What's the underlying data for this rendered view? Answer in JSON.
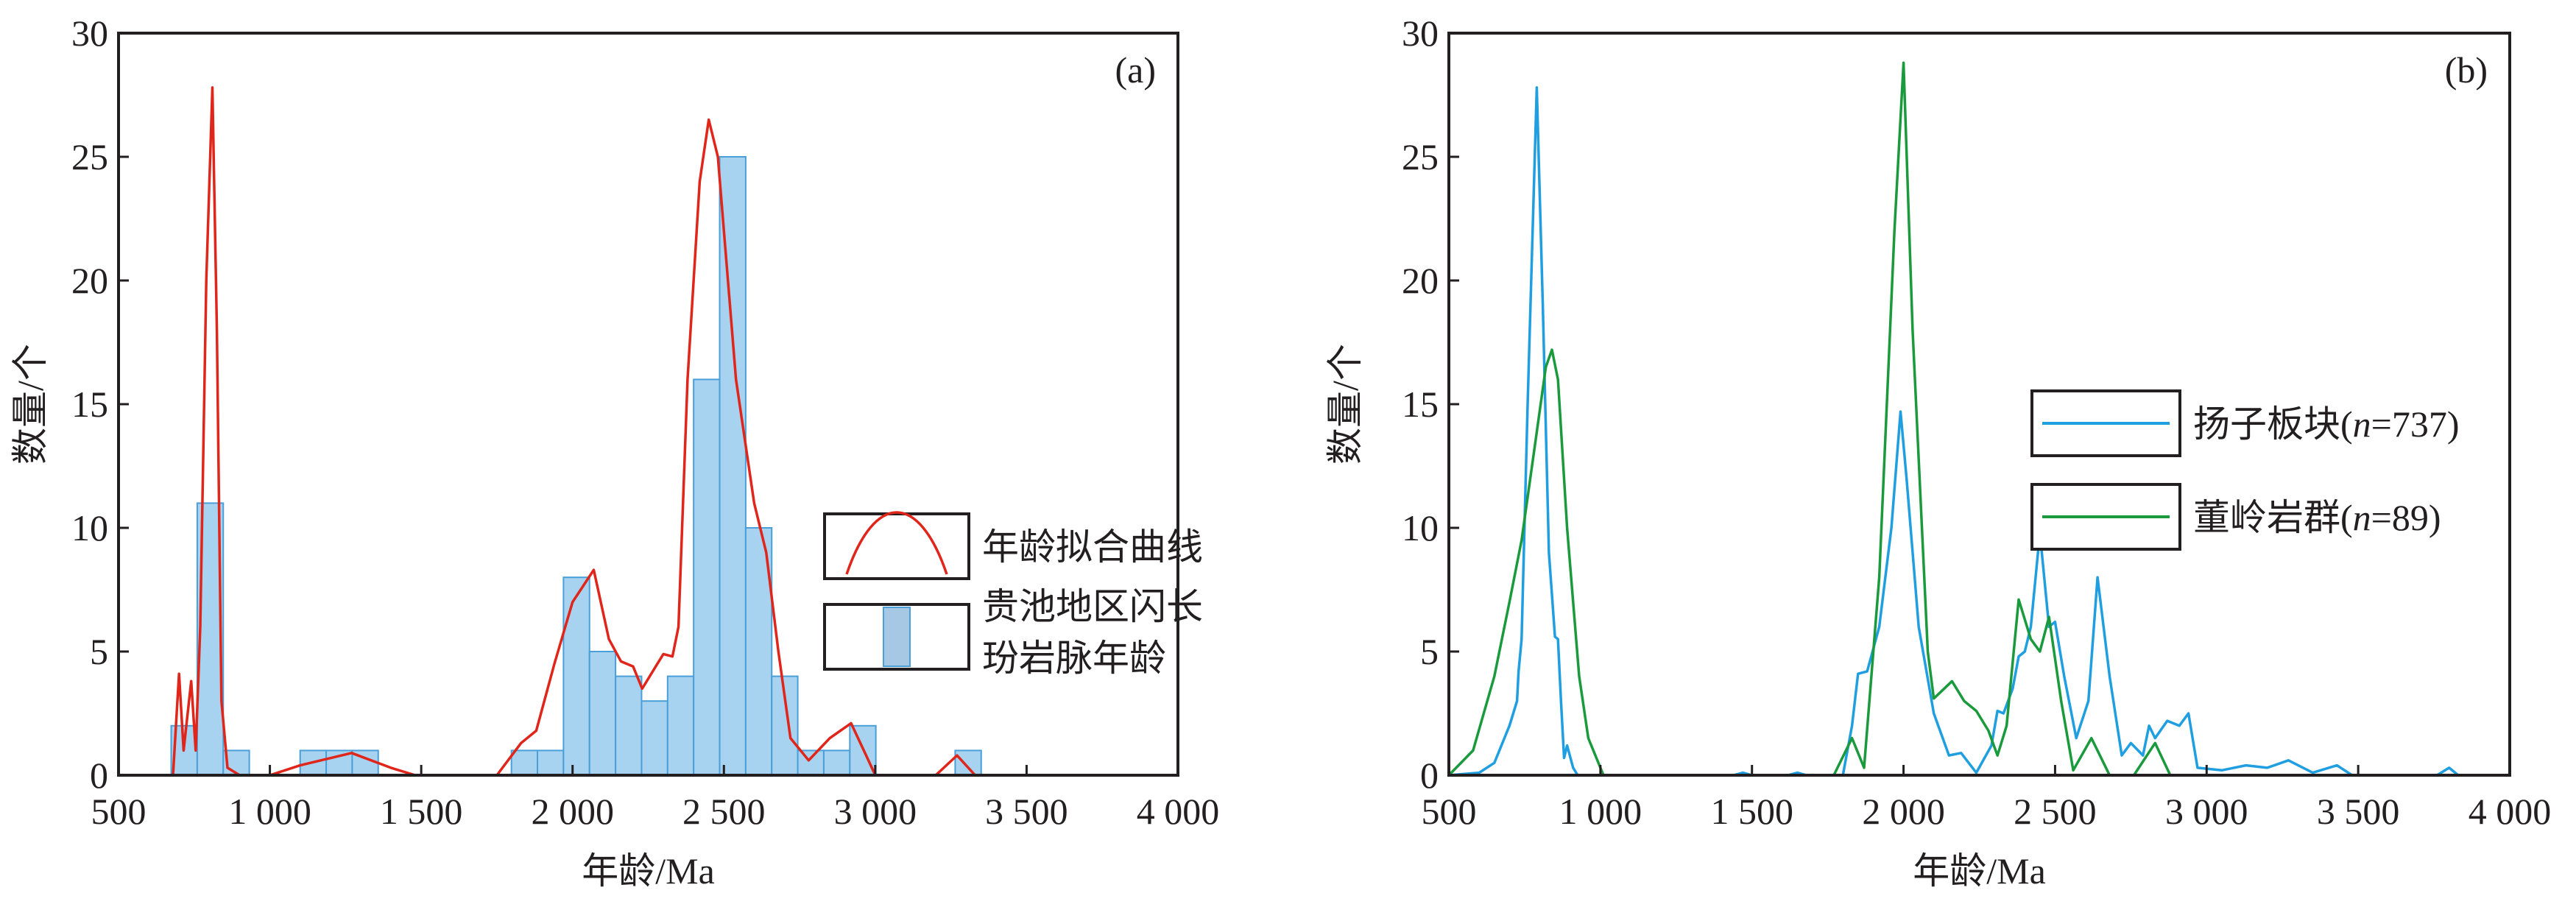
{
  "colors": {
    "axis": "#231f20",
    "bar_fill": "#a7d3f0",
    "bar_stroke": "#4a9fd8",
    "red": "#e0251b",
    "blue": "#1f9ee0",
    "green": "#1a9a3c"
  },
  "chart_data": [
    {
      "type": "bar",
      "panel_label": "(a)",
      "xlabel": "年龄/Ma",
      "ylabel": "数量/个",
      "xlim": [
        500,
        4000
      ],
      "ylim": [
        0,
        30
      ],
      "xticks": [
        500,
        1000,
        1500,
        2000,
        2500,
        3000,
        3500,
        4000
      ],
      "xtick_labels": [
        "500",
        "1 000",
        "1 500",
        "2 000",
        "2 500",
        "3 000",
        "3 500",
        "4 000"
      ],
      "yticks": [
        0,
        5,
        10,
        15,
        20,
        25,
        30
      ],
      "ytick_labels": [
        "0",
        "5",
        "10",
        "15",
        "20",
        "25",
        "30"
      ],
      "histogram": {
        "name": "贵池地区闪长玢岩脉年龄",
        "bin_width": 86,
        "bins": [
          [
            674,
            2
          ],
          [
            760,
            11
          ],
          [
            846,
            1
          ],
          [
            1100,
            1
          ],
          [
            1186,
            1
          ],
          [
            1272,
            1
          ],
          [
            1798,
            1
          ],
          [
            1884,
            1
          ],
          [
            1970,
            8
          ],
          [
            2056,
            5
          ],
          [
            2142,
            4
          ],
          [
            2228,
            3
          ],
          [
            2314,
            4
          ],
          [
            2400,
            16
          ],
          [
            2486,
            25
          ],
          [
            2572,
            10
          ],
          [
            2658,
            4
          ],
          [
            2744,
            1
          ],
          [
            2830,
            1
          ],
          [
            2916,
            2
          ],
          [
            3264,
            1
          ]
        ]
      },
      "series": [
        {
          "name": "年龄拟合曲线",
          "color": "#e0251b",
          "points": [
            [
              680,
              0
            ],
            [
              700,
              4.1
            ],
            [
              715,
              1
            ],
            [
              740,
              3.8
            ],
            [
              755,
              1
            ],
            [
              770,
              6
            ],
            [
              790,
              20
            ],
            [
              810,
              27.8
            ],
            [
              825,
              18
            ],
            [
              840,
              3
            ],
            [
              860,
              0.3
            ],
            [
              900,
              0
            ],
            [
              1000,
              0
            ],
            [
              1100,
              0.4
            ],
            [
              1270,
              0.9
            ],
            [
              1400,
              0.3
            ],
            [
              1480,
              0
            ],
            [
              1750,
              0
            ],
            [
              1830,
              1.3
            ],
            [
              1880,
              1.8
            ],
            [
              1940,
              4.5
            ],
            [
              2000,
              7
            ],
            [
              2070,
              8.3
            ],
            [
              2120,
              5.5
            ],
            [
              2160,
              4.6
            ],
            [
              2200,
              4.4
            ],
            [
              2230,
              3.5
            ],
            [
              2280,
              4.5
            ],
            [
              2300,
              4.9
            ],
            [
              2330,
              4.8
            ],
            [
              2350,
              6
            ],
            [
              2380,
              16
            ],
            [
              2420,
              24
            ],
            [
              2450,
              26.5
            ],
            [
              2480,
              25
            ],
            [
              2540,
              16
            ],
            [
              2600,
              11
            ],
            [
              2640,
              9
            ],
            [
              2680,
              5
            ],
            [
              2720,
              1.5
            ],
            [
              2780,
              0.6
            ],
            [
              2850,
              1.5
            ],
            [
              2920,
              2.1
            ],
            [
              2970,
              0.8
            ],
            [
              3000,
              0
            ],
            [
              3200,
              0
            ],
            [
              3270,
              0.8
            ],
            [
              3330,
              0
            ]
          ]
        }
      ],
      "legend": {
        "placement": "center-right",
        "entries": [
          "年龄拟合曲线",
          "贵池地区闪长",
          "玢岩脉年龄"
        ]
      }
    },
    {
      "type": "line",
      "panel_label": "(b)",
      "xlabel": "年龄/Ma",
      "ylabel": "数量/个",
      "xlim": [
        500,
        4000
      ],
      "ylim": [
        0,
        30
      ],
      "xticks": [
        500,
        1000,
        1500,
        2000,
        2500,
        3000,
        3500,
        4000
      ],
      "xtick_labels": [
        "500",
        "1 000",
        "1 500",
        "2 000",
        "2 500",
        "3 000",
        "3 500",
        "4 000"
      ],
      "yticks": [
        0,
        5,
        10,
        15,
        20,
        25,
        30
      ],
      "ytick_labels": [
        "0",
        "5",
        "10",
        "15",
        "20",
        "25",
        "30"
      ],
      "series": [
        {
          "name": "扬子板块(n=737)",
          "label_main": "扬子板块(",
          "label_n": "n",
          "label_rest": "=737)",
          "color": "#1f9ee0",
          "points": [
            [
              500,
              0
            ],
            [
              600,
              0.1
            ],
            [
              650,
              0.5
            ],
            [
              700,
              2
            ],
            [
              725,
              3
            ],
            [
              730,
              4.2
            ],
            [
              740,
              5.5
            ],
            [
              760,
              15
            ],
            [
              790,
              27.8
            ],
            [
              810,
              19
            ],
            [
              830,
              9
            ],
            [
              850,
              5.6
            ],
            [
              860,
              5.5
            ],
            [
              870,
              3
            ],
            [
              880,
              0.7
            ],
            [
              890,
              1.2
            ],
            [
              910,
              0.3
            ],
            [
              925,
              0
            ],
            [
              1440,
              0
            ],
            [
              1470,
              0.1
            ],
            [
              1500,
              0
            ],
            [
              1620,
              0
            ],
            [
              1650,
              0.1
            ],
            [
              1680,
              0
            ],
            [
              1800,
              0
            ],
            [
              1830,
              2
            ],
            [
              1850,
              4.1
            ],
            [
              1880,
              4.2
            ],
            [
              1920,
              6
            ],
            [
              1960,
              10
            ],
            [
              1990,
              14.7
            ],
            [
              2010,
              12
            ],
            [
              2050,
              6
            ],
            [
              2100,
              2.5
            ],
            [
              2150,
              0.8
            ],
            [
              2190,
              0.9
            ],
            [
              2240,
              0.1
            ],
            [
              2290,
              1.2
            ],
            [
              2310,
              2.6
            ],
            [
              2330,
              2.5
            ],
            [
              2360,
              3.5
            ],
            [
              2380,
              4.8
            ],
            [
              2400,
              5
            ],
            [
              2420,
              6
            ],
            [
              2450,
              9.8
            ],
            [
              2480,
              6
            ],
            [
              2500,
              6.2
            ],
            [
              2530,
              4
            ],
            [
              2570,
              1.5
            ],
            [
              2610,
              3
            ],
            [
              2640,
              8
            ],
            [
              2680,
              4
            ],
            [
              2720,
              0.8
            ],
            [
              2750,
              1.3
            ],
            [
              2790,
              0.8
            ],
            [
              2810,
              2
            ],
            [
              2830,
              1.5
            ],
            [
              2870,
              2.2
            ],
            [
              2910,
              2
            ],
            [
              2940,
              2.5
            ],
            [
              2970,
              0.3
            ],
            [
              3050,
              0.2
            ],
            [
              3130,
              0.4
            ],
            [
              3200,
              0.3
            ],
            [
              3270,
              0.6
            ],
            [
              3350,
              0.1
            ],
            [
              3430,
              0.4
            ],
            [
              3480,
              0
            ],
            [
              3760,
              0
            ],
            [
              3800,
              0.3
            ],
            [
              3830,
              0
            ]
          ]
        },
        {
          "name": "董岭岩群(n=89)",
          "label_main": "董岭岩群(",
          "label_n": "n",
          "label_rest": "=89)",
          "color": "#1a9a3c",
          "points": [
            [
              500,
              0
            ],
            [
              580,
              1
            ],
            [
              650,
              4
            ],
            [
              700,
              7
            ],
            [
              740,
              9.5
            ],
            [
              780,
              13
            ],
            [
              820,
              16.5
            ],
            [
              840,
              17.2
            ],
            [
              860,
              16
            ],
            [
              890,
              10
            ],
            [
              930,
              4
            ],
            [
              960,
              1.5
            ],
            [
              1010,
              0
            ],
            [
              1770,
              0
            ],
            [
              1830,
              1.5
            ],
            [
              1870,
              0.3
            ],
            [
              1920,
              8
            ],
            [
              1970,
              22
            ],
            [
              2000,
              28.8
            ],
            [
              2030,
              18
            ],
            [
              2080,
              5
            ],
            [
              2100,
              3.1
            ],
            [
              2160,
              3.8
            ],
            [
              2200,
              3
            ],
            [
              2240,
              2.6
            ],
            [
              2280,
              1.8
            ],
            [
              2310,
              0.8
            ],
            [
              2340,
              2
            ],
            [
              2380,
              7.1
            ],
            [
              2420,
              5.5
            ],
            [
              2450,
              5
            ],
            [
              2480,
              6.4
            ],
            [
              2520,
              3
            ],
            [
              2560,
              0.2
            ],
            [
              2620,
              1.5
            ],
            [
              2680,
              0
            ],
            [
              2760,
              0
            ],
            [
              2830,
              1.3
            ],
            [
              2880,
              0
            ]
          ]
        }
      ],
      "legend": {
        "placement": "center-right"
      }
    }
  ]
}
